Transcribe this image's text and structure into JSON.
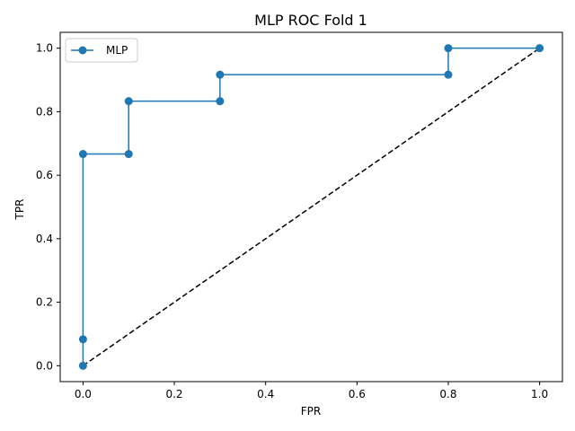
{
  "chart_data": {
    "type": "line",
    "title": "MLP ROC Fold 1",
    "xlabel": "FPR",
    "ylabel": "TPR",
    "xlim": [
      -0.05,
      1.05
    ],
    "ylim": [
      -0.05,
      1.05
    ],
    "xticks": [
      0.0,
      0.2,
      0.4,
      0.6,
      0.8,
      1.0
    ],
    "yticks": [
      0.0,
      0.2,
      0.4,
      0.6,
      0.8,
      1.0
    ],
    "xtick_labels": [
      "0.0",
      "0.2",
      "0.4",
      "0.6",
      "0.8",
      "1.0"
    ],
    "ytick_labels": [
      "0.0",
      "0.2",
      "0.4",
      "0.6",
      "0.8",
      "1.0"
    ],
    "grid": false,
    "legend": {
      "position": "upper-left",
      "entries": [
        "MLP"
      ]
    },
    "series": [
      {
        "name": "MLP",
        "color": "#1f77b4",
        "marker": "circle",
        "line_style": "solid",
        "x": [
          0.0,
          0.0,
          0.0,
          0.1,
          0.1,
          0.3,
          0.3,
          0.8,
          0.8,
          1.0
        ],
        "y": [
          0.0,
          0.0833,
          0.6667,
          0.6667,
          0.8333,
          0.8333,
          0.9167,
          0.9167,
          1.0,
          1.0
        ]
      }
    ],
    "reference_line": {
      "color": "#000000",
      "line_style": "dashed",
      "x": [
        0.0,
        1.0
      ],
      "y": [
        0.0,
        1.0
      ]
    }
  }
}
